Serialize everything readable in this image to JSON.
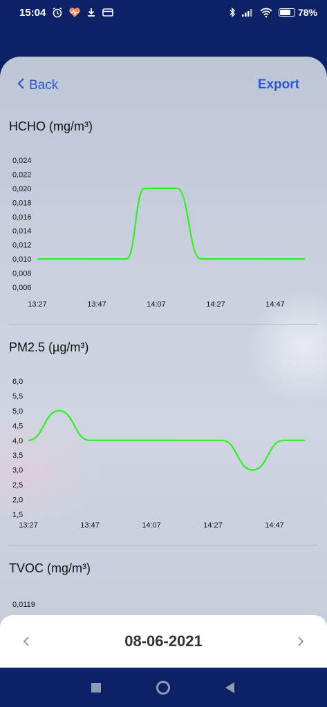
{
  "status_bar": {
    "time": "15:04",
    "battery_percent": "78%",
    "battery_level": 0.78,
    "left_icons": [
      "alarm-icon",
      "heart-health-icon",
      "download-icon",
      "card-icon"
    ],
    "right_icons": [
      "bluetooth-icon",
      "signal-icon",
      "wifi-icon",
      "battery-icon"
    ]
  },
  "header": {
    "back_label": "Back",
    "export_label": "Export",
    "accent_color": "#2f55d4"
  },
  "sections": [
    {
      "title": "HCHO (mg/m³)"
    },
    {
      "title": "PM2.5 (µg/m³)"
    },
    {
      "title": "TVOC (mg/m³)",
      "first_tick": "0,0119"
    }
  ],
  "chart_data": [
    {
      "type": "line",
      "title": "HCHO (mg/m³)",
      "line_color": "#33ee22",
      "y_ticks": [
        "0,024",
        "0,022",
        "0,020",
        "0,018",
        "0,016",
        "0,014",
        "0,012",
        "0,010",
        "0,008",
        "0,006"
      ],
      "ylim": [
        0.006,
        0.024
      ],
      "x_ticks": [
        "13:27",
        "13:47",
        "14:07",
        "14:27",
        "14:47"
      ],
      "x_minutes": [
        0,
        90
      ],
      "series": [
        {
          "points": [
            [
              0,
              0.01
            ],
            [
              30,
              0.01
            ],
            [
              36,
              0.02
            ],
            [
              47,
              0.02
            ],
            [
              55,
              0.01
            ],
            [
              90,
              0.01
            ]
          ]
        }
      ]
    },
    {
      "type": "line",
      "title": "PM2.5 (µg/m³)",
      "line_color": "#33ee22",
      "y_ticks": [
        "6,0",
        "5,5",
        "5,0",
        "4,5",
        "4,0",
        "3,5",
        "3,0",
        "2,5",
        "2,0",
        "1,5"
      ],
      "ylim": [
        1.5,
        6.0
      ],
      "x_ticks": [
        "13:27",
        "13:47",
        "14:07",
        "14:27",
        "14:47"
      ],
      "x_minutes": [
        0,
        90
      ],
      "series": [
        {
          "points": [
            [
              0,
              4.0
            ],
            [
              10,
              5.0
            ],
            [
              20,
              4.0
            ],
            [
              63,
              4.0
            ],
            [
              73,
              3.0
            ],
            [
              83,
              4.0
            ],
            [
              90,
              4.0
            ]
          ]
        }
      ]
    }
  ],
  "date_bar": {
    "date": "08-06-2021",
    "prev_icon": "chevron-left-icon",
    "next_icon": "chevron-right-icon"
  },
  "nav_bar": {
    "icons": [
      "recents-square-icon",
      "home-circle-icon",
      "back-triangle-icon"
    ]
  }
}
